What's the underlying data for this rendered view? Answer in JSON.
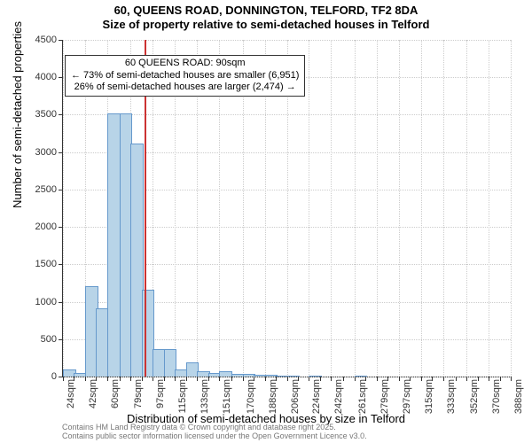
{
  "title_main": "60, QUEENS ROAD, DONNINGTON, TELFORD, TF2 8DA",
  "title_sub": "Size of property relative to semi-detached houses in Telford",
  "y_axis_label": "Number of semi-detached properties",
  "x_axis_label": "Distribution of semi-detached houses by size in Telford",
  "footer_line1": "Contains HM Land Registry data © Crown copyright and database right 2025.",
  "footer_line2": "Contains public sector information licensed under the Open Government Licence v3.0.",
  "annotation": {
    "line1": "60 QUEENS ROAD: 90sqm",
    "line2": "← 73% of semi-detached houses are smaller (6,951)",
    "line3": "26% of semi-detached houses are larger (2,474) →"
  },
  "chart": {
    "type": "histogram",
    "background_color": "#ffffff",
    "grid_color": "#cccccc",
    "axis_color": "#333333",
    "bar_fill": "#b8d4e8",
    "bar_stroke": "#6699cc",
    "marker_color": "#cc3333",
    "ylim": [
      0,
      4500
    ],
    "ytick_step": 500,
    "marker_x_value": 90,
    "label_fontsize": 13,
    "tick_fontsize": 11,
    "title_fontsize": 13,
    "bins": [
      {
        "x": 24,
        "count": 80
      },
      {
        "x": 33,
        "count": 30
      },
      {
        "x": 42,
        "count": 1200
      },
      {
        "x": 51,
        "count": 900
      },
      {
        "x": 60,
        "count": 3500
      },
      {
        "x": 70,
        "count": 3500
      },
      {
        "x": 79,
        "count": 3100
      },
      {
        "x": 88,
        "count": 1150
      },
      {
        "x": 97,
        "count": 350
      },
      {
        "x": 106,
        "count": 350
      },
      {
        "x": 115,
        "count": 80
      },
      {
        "x": 124,
        "count": 180
      },
      {
        "x": 133,
        "count": 60
      },
      {
        "x": 142,
        "count": 30
      },
      {
        "x": 151,
        "count": 60
      },
      {
        "x": 161,
        "count": 20
      },
      {
        "x": 170,
        "count": 20
      },
      {
        "x": 179,
        "count": 10
      },
      {
        "x": 188,
        "count": 10
      },
      {
        "x": 197,
        "count": 5
      },
      {
        "x": 206,
        "count": 5
      },
      {
        "x": 215,
        "count": 0
      },
      {
        "x": 224,
        "count": 5
      },
      {
        "x": 233,
        "count": 0
      },
      {
        "x": 242,
        "count": 0
      },
      {
        "x": 252,
        "count": 0
      },
      {
        "x": 261,
        "count": 5
      },
      {
        "x": 270,
        "count": 0
      },
      {
        "x": 279,
        "count": 0
      },
      {
        "x": 288,
        "count": 0
      },
      {
        "x": 297,
        "count": 0
      },
      {
        "x": 306,
        "count": 0
      },
      {
        "x": 315,
        "count": 0
      },
      {
        "x": 324,
        "count": 0
      },
      {
        "x": 333,
        "count": 0
      },
      {
        "x": 343,
        "count": 0
      },
      {
        "x": 352,
        "count": 0
      },
      {
        "x": 361,
        "count": 0
      },
      {
        "x": 370,
        "count": 0
      },
      {
        "x": 379,
        "count": 0
      },
      {
        "x": 388,
        "count": 0
      }
    ],
    "x_tick_labels": [
      24,
      42,
      60,
      79,
      97,
      115,
      133,
      151,
      170,
      188,
      206,
      224,
      242,
      261,
      279,
      297,
      315,
      333,
      352,
      370,
      388
    ]
  }
}
